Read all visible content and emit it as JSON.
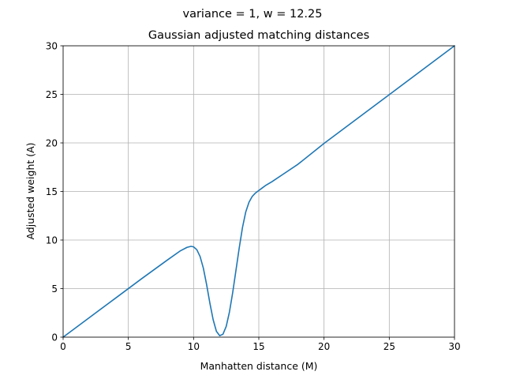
{
  "chart_data": {
    "type": "line",
    "suptitle": "variance = 1, w = 12.25",
    "title": "Gaussian adjusted matching distances",
    "xlabel": "Manhatten distance (M)",
    "ylabel": "Adjusted weight (A)",
    "xlim": [
      0,
      30
    ],
    "ylim": [
      0,
      30
    ],
    "xticks": [
      0,
      5,
      10,
      15,
      20,
      25,
      30
    ],
    "yticks": [
      0,
      5,
      10,
      15,
      20,
      25,
      30
    ],
    "grid": true,
    "series": [
      {
        "color": "#1f77b4",
        "x": [
          0,
          2,
          4,
          6,
          8,
          9,
          9.5,
          9.8,
          10,
          10.25,
          10.5,
          10.75,
          11,
          11.25,
          11.5,
          11.75,
          12,
          12.25,
          12.5,
          12.75,
          13,
          13.25,
          13.5,
          13.75,
          14,
          14.25,
          14.5,
          14.75,
          15,
          15.25,
          15.5,
          16,
          17,
          18,
          20,
          25,
          30
        ],
        "y": [
          0,
          2,
          4,
          6,
          7.95,
          8.9,
          9.25,
          9.35,
          9.3,
          9.0,
          8.3,
          7.1,
          5.4,
          3.5,
          1.8,
          0.6,
          0.15,
          0.3,
          1.1,
          2.6,
          4.6,
          6.9,
          9.2,
          11.3,
          12.9,
          13.9,
          14.5,
          14.85,
          15.1,
          15.35,
          15.6,
          16.0,
          16.9,
          17.8,
          19.95,
          24.97,
          30
        ]
      }
    ]
  }
}
